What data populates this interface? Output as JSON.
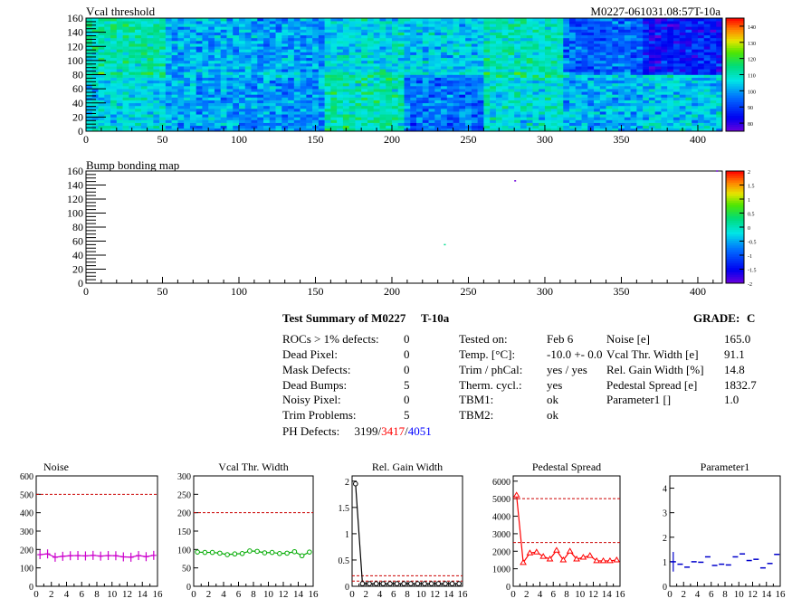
{
  "chart_data": [
    {
      "type": "heatmap",
      "title": "Vcal threshold",
      "module_label": "M0227-061031.08:57T-10a",
      "xlim": [
        0,
        416
      ],
      "ylim": [
        0,
        160
      ],
      "x_ticks": [
        "0",
        "50",
        "100",
        "150",
        "200",
        "250",
        "300",
        "350",
        "400"
      ],
      "y_ticks": [
        "0",
        "20",
        "40",
        "60",
        "80",
        "100",
        "120",
        "140",
        "160"
      ],
      "colorbar": {
        "min": 75,
        "max": 145,
        "ticks": [
          "80",
          "90",
          "100",
          "110",
          "120",
          "130",
          "140"
        ]
      },
      "roc_means": {
        "top_row": [
          112,
          102,
          100,
          106,
          104,
          110,
          94,
          86
        ],
        "bottom_row": [
          106,
          101,
          99,
          111,
          96,
          107,
          102,
          104
        ]
      },
      "colors": {
        "frame": "#000000",
        "background": "#ffffff"
      }
    },
    {
      "type": "heatmap",
      "title": "Bump bonding map",
      "xlim": [
        0,
        416
      ],
      "ylim": [
        0,
        160
      ],
      "x_ticks": [
        "0",
        "50",
        "100",
        "150",
        "200",
        "250",
        "300",
        "350",
        "400"
      ],
      "y_ticks": [
        "0",
        "20",
        "40",
        "60",
        "80",
        "100",
        "120",
        "140",
        "160"
      ],
      "colorbar": {
        "min": -2,
        "max": 2,
        "ticks": [
          "-2",
          "-1.5",
          "-1",
          "-0.5",
          "0",
          "0.5",
          "1",
          "1.5",
          "2"
        ]
      },
      "points": [
        {
          "x": 280,
          "y": 145,
          "value": -2
        },
        {
          "x": 234,
          "y": 54,
          "value": 0.2
        },
        {
          "x": 412,
          "y": 159,
          "value": -2
        }
      ]
    },
    {
      "type": "line",
      "title": "Noise",
      "xlim": [
        0,
        16
      ],
      "ylim": [
        0,
        600
      ],
      "x_ticks": [
        "0",
        "2",
        "4",
        "6",
        "8",
        "10",
        "12",
        "14",
        "16"
      ],
      "y_ticks": [
        "0",
        "100",
        "200",
        "300",
        "400",
        "500",
        "600"
      ],
      "reference_lines": [
        500
      ],
      "color": "#cc00cc",
      "marker": "cross",
      "values": [
        172,
        176,
        158,
        163,
        166,
        167,
        165,
        168,
        164,
        167,
        166,
        160,
        158,
        167,
        161,
        168
      ]
    },
    {
      "type": "line",
      "title": "Vcal Thr. Width",
      "xlim": [
        0,
        16
      ],
      "ylim": [
        0,
        300
      ],
      "x_ticks": [
        "0",
        "2",
        "4",
        "6",
        "8",
        "10",
        "12",
        "14",
        "16"
      ],
      "y_ticks": [
        "0",
        "50",
        "100",
        "150",
        "200",
        "250",
        "300"
      ],
      "reference_lines": [
        200
      ],
      "color": "#00aa00",
      "marker": "circle",
      "values": [
        93,
        92,
        92,
        90,
        86,
        88,
        89,
        96,
        95,
        91,
        92,
        89,
        90,
        94,
        83,
        93
      ]
    },
    {
      "type": "line",
      "title": "Rel. Gain Width",
      "xlim": [
        0,
        16
      ],
      "ylim": [
        0,
        2.1
      ],
      "x_ticks": [
        "0",
        "2",
        "4",
        "6",
        "8",
        "10",
        "12",
        "14",
        "16"
      ],
      "y_ticks": [
        "0",
        "0.5",
        "1",
        "1.5",
        "2"
      ],
      "reference_lines": [
        0.1,
        0.2
      ],
      "color": "#000000",
      "marker": "circle",
      "values": [
        1.95,
        0.05,
        0.05,
        0.05,
        0.05,
        0.05,
        0.05,
        0.05,
        0.05,
        0.05,
        0.05,
        0.05,
        0.05,
        0.05,
        0.05,
        0.05
      ]
    },
    {
      "type": "line",
      "title": "Pedestal Spread",
      "xlim": [
        0,
        16
      ],
      "ylim": [
        0,
        6300
      ],
      "x_ticks": [
        "0",
        "2",
        "4",
        "6",
        "8",
        "10",
        "12",
        "14",
        "16"
      ],
      "y_ticks": [
        "0",
        "1000",
        "2000",
        "3000",
        "4000",
        "5000",
        "6000"
      ],
      "reference_lines": [
        2500,
        5000
      ],
      "color": "#ff0000",
      "marker": "triangle",
      "values": [
        5200,
        1350,
        1900,
        1950,
        1700,
        1550,
        2050,
        1500,
        2000,
        1550,
        1650,
        1750,
        1450,
        1450,
        1450,
        1500
      ]
    },
    {
      "type": "scatter",
      "title": "Parameter1",
      "xlim": [
        0,
        16
      ],
      "ylim": [
        0,
        4.5
      ],
      "x_ticks": [
        "0",
        "2",
        "4",
        "6",
        "8",
        "10",
        "12",
        "14",
        "16"
      ],
      "y_ticks": [
        "0",
        "1",
        "2",
        "3",
        "4"
      ],
      "color": "#0000cc",
      "marker": "horizontal-bar",
      "values": [
        1.0,
        0.9,
        0.78,
        1.0,
        0.98,
        1.2,
        0.85,
        0.9,
        0.87,
        1.2,
        1.32,
        1.05,
        1.1,
        0.75,
        0.93,
        1.3
      ],
      "error_first": 0.4
    }
  ],
  "summary": {
    "title": "Test Summary of M0227",
    "tag": "T-10a",
    "grade_label": "GRADE:",
    "grade": "C",
    "left": [
      {
        "label": "ROCs > 1% defects:",
        "value": "0"
      },
      {
        "label": "Dead Pixel:",
        "value": "0"
      },
      {
        "label": "Mask Defects:",
        "value": "0"
      },
      {
        "label": "Dead Bumps:",
        "value": "5"
      },
      {
        "label": "Noisy Pixel:",
        "value": "0"
      },
      {
        "label": "Trim Problems:",
        "value": "5"
      }
    ],
    "ph_label": "PH Defects:",
    "ph_a": "3199",
    "ph_slash1": "/",
    "ph_b": "3417",
    "ph_slash2": "/",
    "ph_c": "4051",
    "middle": [
      {
        "label": "Tested on:",
        "value": "Feb 6"
      },
      {
        "label": "Temp. [°C]:",
        "value": "-10.0 +- 0.0"
      },
      {
        "label": "Trim / phCal:",
        "value": "yes / yes"
      },
      {
        "label": "Therm. cycl.:",
        "value": "yes"
      },
      {
        "label": "TBM1:",
        "value": "ok"
      },
      {
        "label": "TBM2:",
        "value": "ok"
      }
    ],
    "right": [
      {
        "label": "Noise [e]",
        "value": "165.0"
      },
      {
        "label": "Vcal Thr. Width [e]",
        "value": "91.1"
      },
      {
        "label": "Rel. Gain Width [%]",
        "value": "14.8"
      },
      {
        "label": "Pedestal Spread [e]",
        "value": "1832.7"
      },
      {
        "label": "Parameter1 []",
        "value": "1.0"
      }
    ]
  }
}
